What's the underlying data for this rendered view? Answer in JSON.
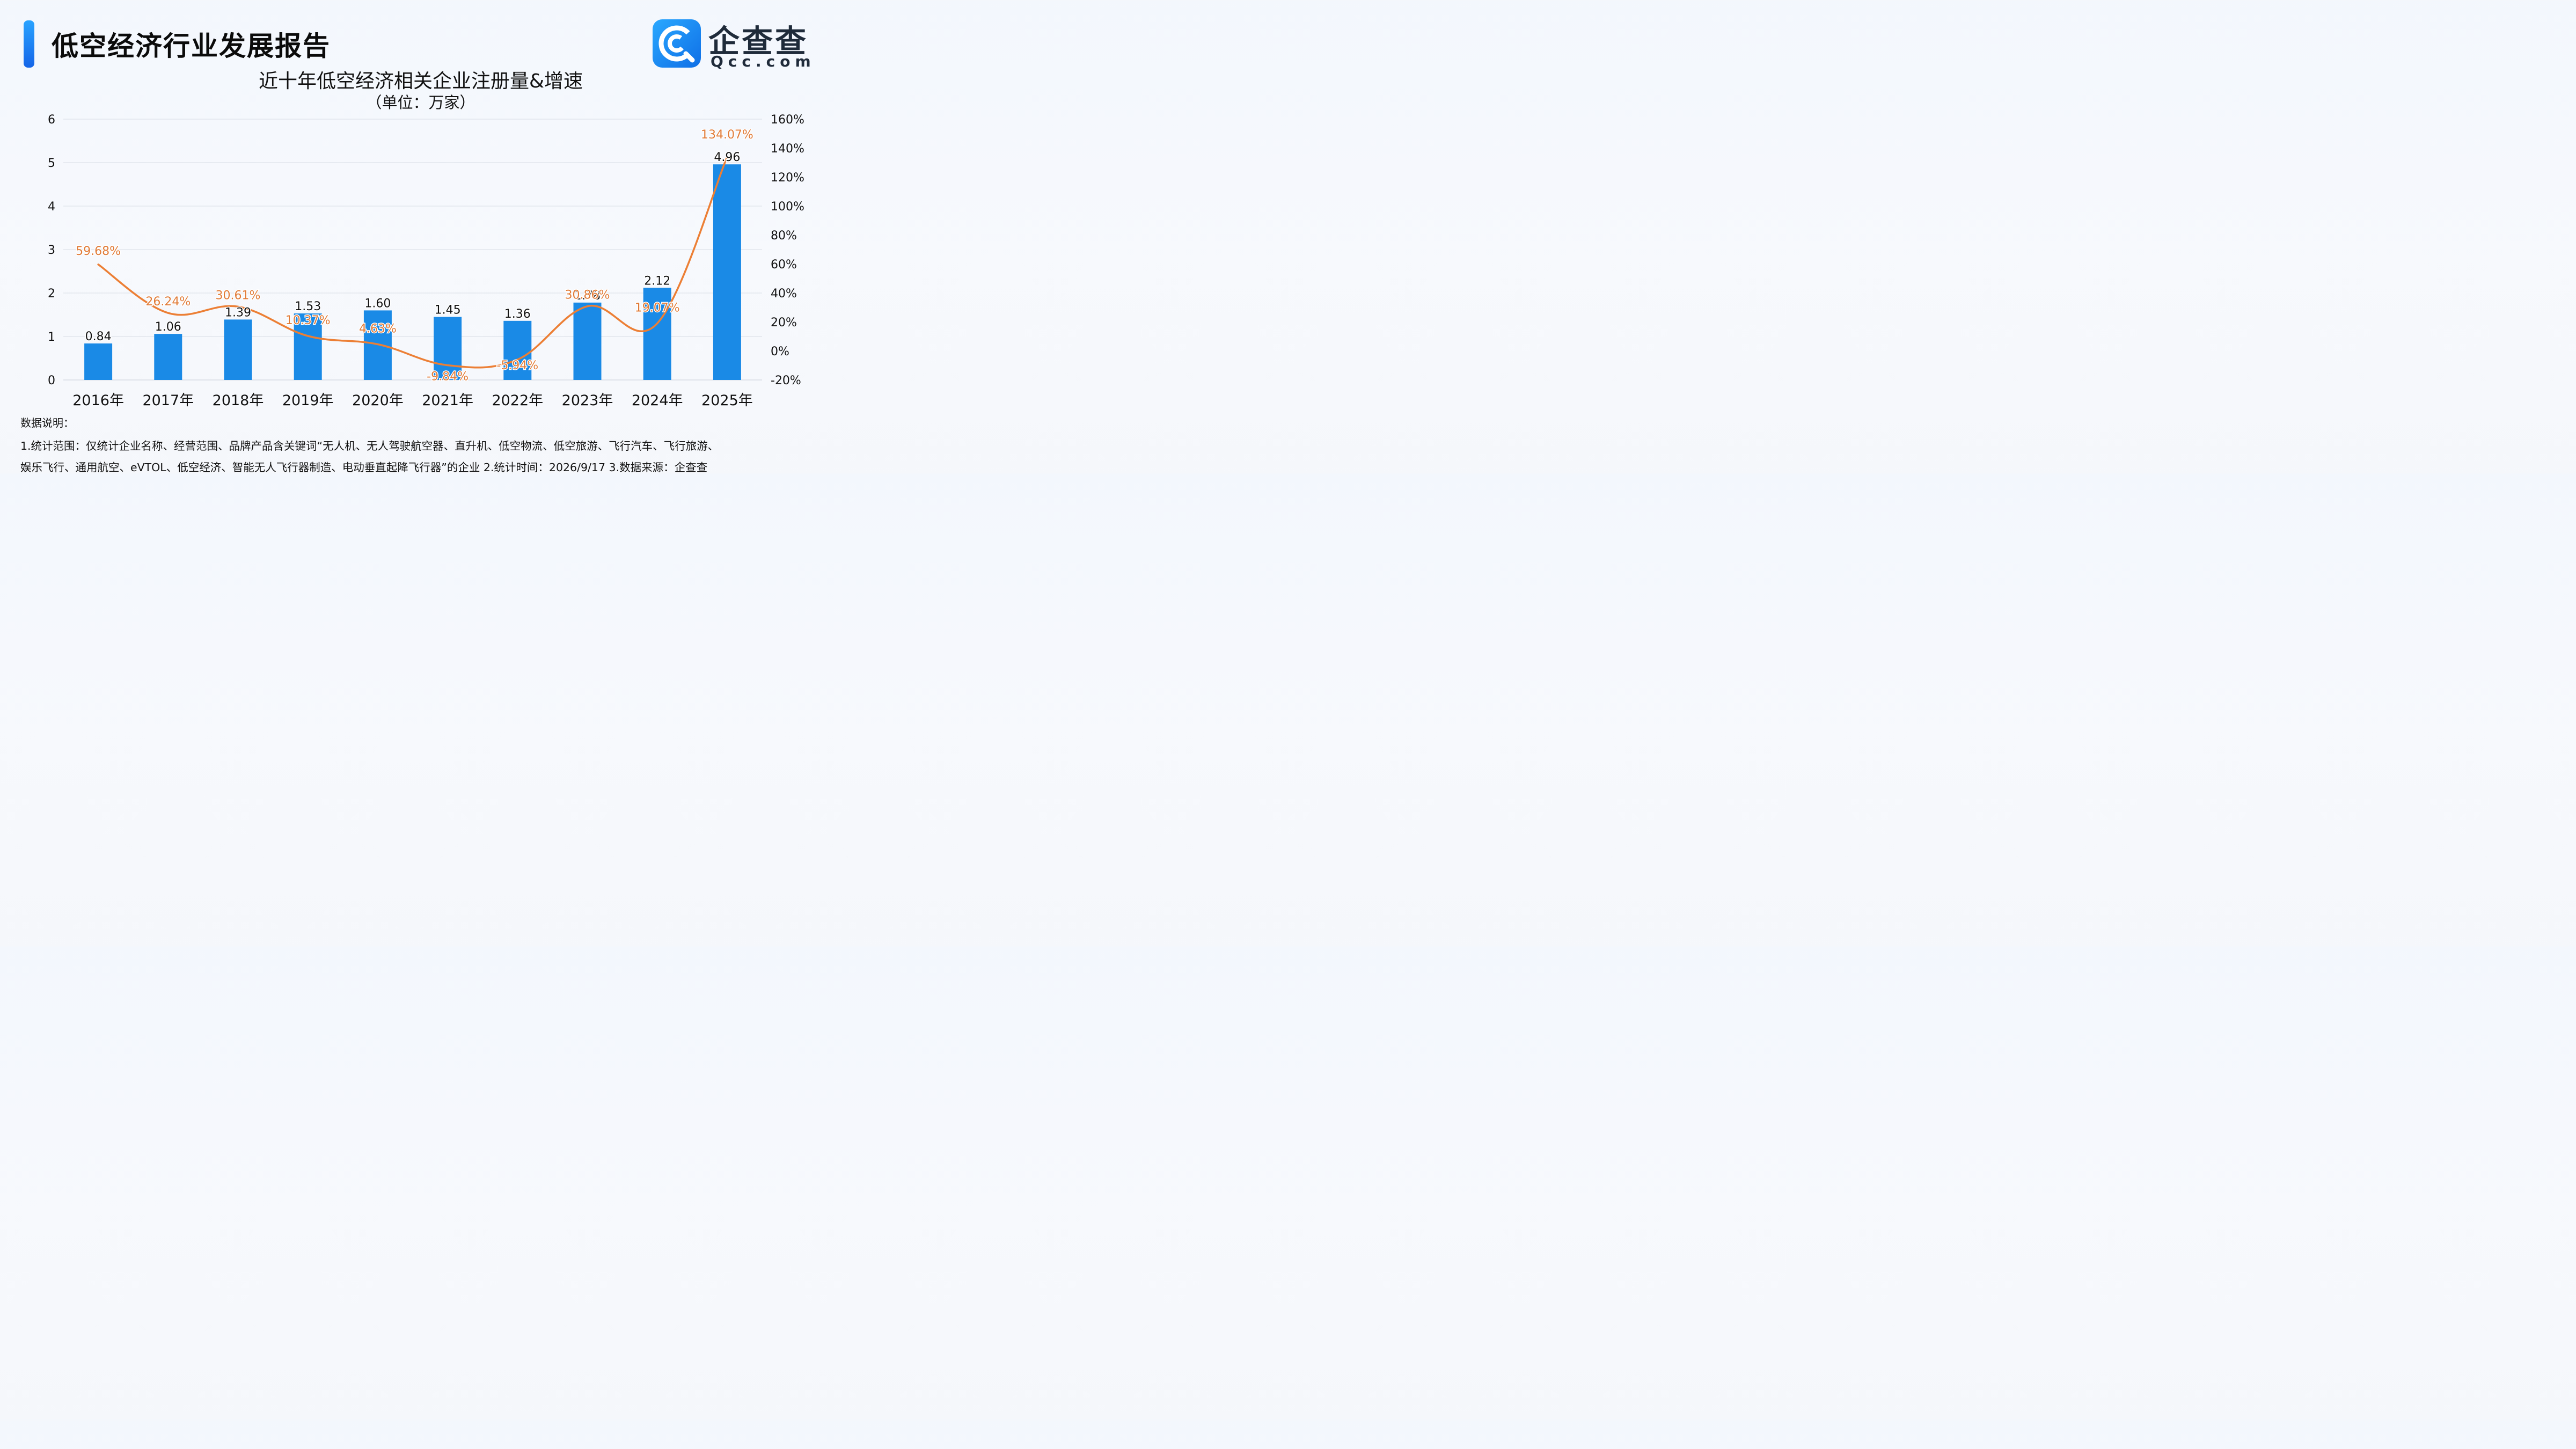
{
  "header": {
    "report_title": "低空经济行业发展报告",
    "logo_name": "企查查",
    "logo_domain": "Qcc.com"
  },
  "chart_data": {
    "type": "bar+line",
    "title": "近十年低空经济相关企业注册量&增速",
    "subtitle": "（单位：万家）",
    "categories": [
      "2016年",
      "2017年",
      "2018年",
      "2019年",
      "2020年",
      "2021年",
      "2022年",
      "2023年",
      "2024年",
      "2025年"
    ],
    "series": [
      {
        "type": "bar",
        "axis": "left",
        "values": [
          0.84,
          1.06,
          1.39,
          1.53,
          1.6,
          1.45,
          1.36,
          1.78,
          2.12,
          4.96
        ],
        "labels": [
          "0.84",
          "1.06",
          "1.39",
          "1.53",
          "1.60",
          "1.45",
          "1.36",
          "1.78",
          "2.12",
          "4.96"
        ]
      },
      {
        "type": "line",
        "axis": "right",
        "values": [
          59.68,
          26.24,
          30.61,
          10.37,
          4.63,
          -9.84,
          -5.94,
          30.86,
          19.07,
          134.07
        ],
        "labels": [
          "59.68%",
          "26.24%",
          "30.61%",
          "10.37%",
          "4.63%",
          "-9.84%",
          "-5.94%",
          "30.86%",
          "19.07%",
          "134.07%"
        ]
      }
    ],
    "y_left": {
      "min": 0,
      "max": 6,
      "ticks": [
        0,
        1,
        2,
        3,
        4,
        5,
        6
      ],
      "tick_labels": [
        "0",
        "1",
        "2",
        "3",
        "4",
        "5",
        "6"
      ]
    },
    "y_right": {
      "min": -20,
      "max": 160,
      "ticks": [
        -20,
        0,
        20,
        40,
        60,
        80,
        100,
        120,
        140,
        160
      ],
      "tick_labels": [
        "-20%",
        "0%",
        "20%",
        "40%",
        "60%",
        "80%",
        "100%",
        "120%",
        "140%",
        "160%"
      ]
    },
    "grid": true,
    "colors": {
      "bar": "#1a8ae6",
      "line": "#ec7f35",
      "line_label": "#e07a36",
      "grid": "#d8dde5"
    }
  },
  "notes": {
    "heading": "数据说明：",
    "line1": "1.统计范围：仅统计企业名称、经营范围、品牌产品含关键词“无人机、无人驾驶航空器、直升机、低空物流、低空旅游、飞行汽车、飞行旅游、",
    "line2": "娱乐飞行、通用航空、eVTOL、低空经济、智能无人飞行器制造、电动垂直起降飞行器”的企业  2.统计时间：2026/9/17  3.数据来源：企查查"
  }
}
